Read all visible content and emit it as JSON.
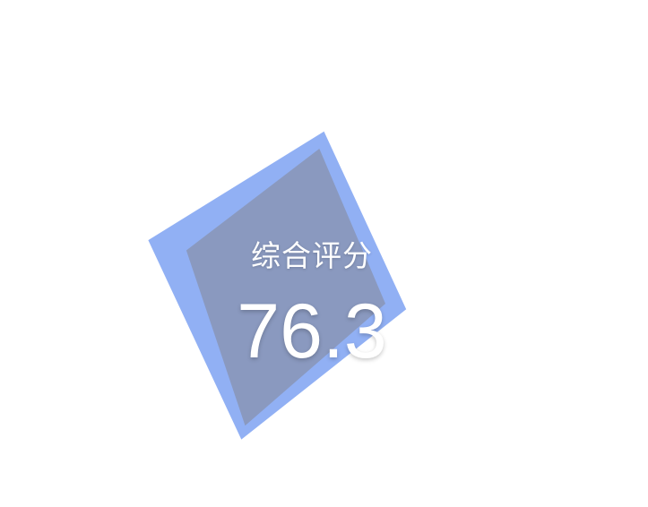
{
  "chart_data": {
    "type": "radar",
    "axis_count": 4,
    "max": 100,
    "series": [
      {
        "color": "#f2d38b",
        "values": [
          74,
          58,
          86,
          57
        ]
      },
      {
        "color": "#7ea2f2",
        "values": [
          84,
          70,
          94,
          79
        ]
      }
    ],
    "center_label": "综合评分",
    "center_value": "76.3"
  }
}
